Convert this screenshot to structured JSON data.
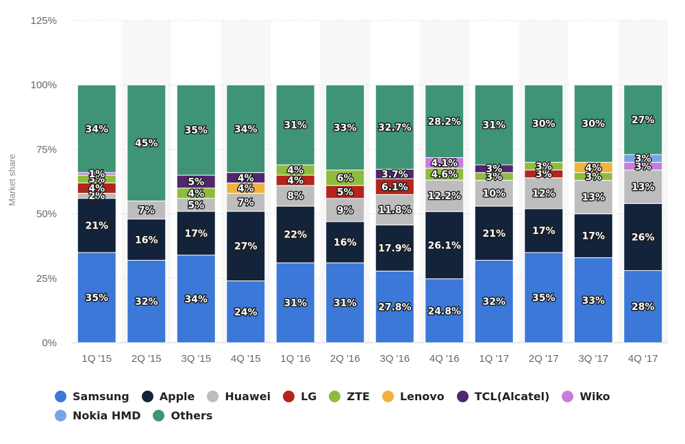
{
  "chart_data": {
    "type": "bar",
    "stacked": true,
    "title": "",
    "xlabel": "",
    "ylabel": "Market share",
    "ylim": [
      0,
      125
    ],
    "yticks": [
      "0%",
      "25%",
      "50%",
      "75%",
      "100%",
      "125%"
    ],
    "grid": true,
    "legend_position": "bottom",
    "categories": [
      "1Q '15",
      "2Q '15",
      "3Q '15",
      "4Q '15",
      "1Q '16",
      "2Q '16",
      "3Q '16",
      "4Q '16",
      "1Q '17",
      "2Q '17",
      "3Q '17",
      "4Q '17"
    ],
    "series": [
      {
        "name": "Samsung",
        "color": "#3b78d8",
        "values": [
          35,
          32,
          34,
          24,
          31,
          31,
          27.8,
          24.8,
          32,
          35,
          33,
          28
        ],
        "labels": [
          "35%",
          "32%",
          "34%",
          "24%",
          "31%",
          "31%",
          "27.8%",
          "24.8%",
          "32%",
          "35%",
          "33%",
          "28%"
        ]
      },
      {
        "name": "Apple",
        "color": "#13233a",
        "values": [
          21,
          16,
          17,
          27,
          22,
          16,
          17.9,
          26.1,
          21,
          17,
          17,
          26
        ],
        "labels": [
          "21%",
          "16%",
          "17%",
          "27%",
          "22%",
          "16%",
          "17.9%",
          "26.1%",
          "21%",
          "17%",
          "17%",
          "26%"
        ]
      },
      {
        "name": "Huawei",
        "color": "#bdbdbd",
        "values": [
          2,
          7,
          5,
          7,
          8,
          9,
          11.8,
          12.2,
          10,
          12,
          13,
          13
        ],
        "labels": [
          "2%",
          "7%",
          "5%",
          "7%",
          "8%",
          "9%",
          "11.8%",
          "12.2%",
          "10%",
          "12%",
          "13%",
          "13%"
        ]
      },
      {
        "name": "LG",
        "color": "#b3251d",
        "values": [
          4,
          null,
          null,
          null,
          4,
          5,
          6.1,
          null,
          null,
          3,
          null,
          null
        ],
        "labels": [
          "4%",
          "",
          "",
          "",
          "4%",
          "5%",
          "6.1%",
          "",
          "",
          "3%",
          "",
          ""
        ]
      },
      {
        "name": "ZTE",
        "color": "#8fbc3f",
        "values": [
          3,
          null,
          4,
          null,
          4,
          6,
          null,
          4.6,
          3,
          3,
          3,
          null
        ],
        "labels": [
          "3%",
          "",
          "4%",
          "",
          "4%",
          "6%",
          "",
          "4.6%",
          "3%",
          "3%",
          "3%",
          ""
        ]
      },
      {
        "name": "Lenovo",
        "color": "#efb33e",
        "values": [
          null,
          null,
          null,
          4,
          null,
          null,
          null,
          null,
          null,
          null,
          4,
          null
        ],
        "labels": [
          "",
          "",
          "",
          "4%",
          "",
          "",
          "",
          "",
          "",
          "",
          "4%",
          ""
        ]
      },
      {
        "name": "TCL(Alcatel)",
        "color": "#52266f",
        "values": [
          null,
          null,
          5,
          4,
          null,
          null,
          3.7,
          null,
          3,
          null,
          null,
          null
        ],
        "labels": [
          "",
          "",
          "5%",
          "4%",
          "",
          "",
          "3.7%",
          "",
          "3%",
          "",
          "",
          ""
        ]
      },
      {
        "name": "Wiko",
        "color": "#c77ddb",
        "values": [
          1,
          null,
          null,
          null,
          null,
          null,
          null,
          4.1,
          null,
          null,
          null,
          3
        ],
        "labels": [
          "1%",
          "",
          "",
          "",
          "",
          "",
          "",
          "4.1%",
          "",
          "",
          "",
          "3%"
        ]
      },
      {
        "name": "Nokia HMD",
        "color": "#76a4e6",
        "values": [
          null,
          null,
          null,
          null,
          null,
          null,
          null,
          null,
          null,
          null,
          null,
          3
        ],
        "labels": [
          "",
          "",
          "",
          "",
          "",
          "",
          "",
          "",
          "",
          "",
          "",
          "3%"
        ]
      },
      {
        "name": "Others",
        "color": "#3f9476",
        "values": [
          34,
          45,
          35,
          34,
          31,
          33,
          32.7,
          28.2,
          31,
          30,
          30,
          27
        ],
        "labels": [
          "34%",
          "45%",
          "35%",
          "34%",
          "31%",
          "33%",
          "32.7%",
          "28.2%",
          "31%",
          "30%",
          "30%",
          "27%"
        ]
      }
    ]
  }
}
